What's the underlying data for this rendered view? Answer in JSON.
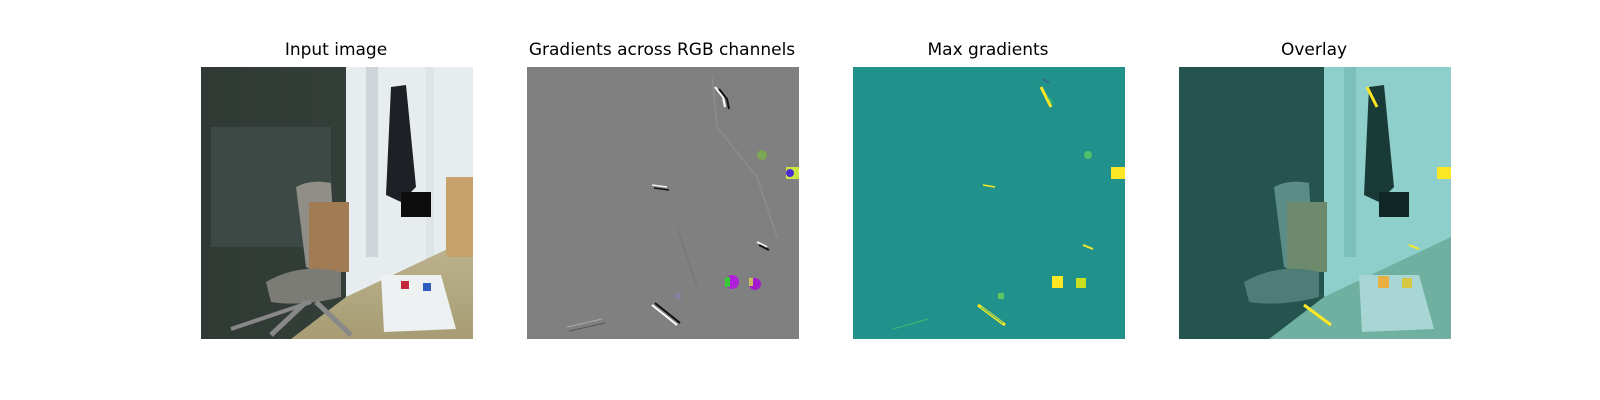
{
  "figure": {
    "panels": [
      {
        "title": "Input image"
      },
      {
        "title": "Gradients across RGB channels"
      },
      {
        "title": "Max gradients"
      },
      {
        "title": "Overlay"
      }
    ]
  },
  "colors": {
    "gradient_gray": "#808080",
    "max_grad_teal": "#21918c",
    "highlight_yellow": "#fde725",
    "overlay_tint": "#7fcfcf"
  }
}
